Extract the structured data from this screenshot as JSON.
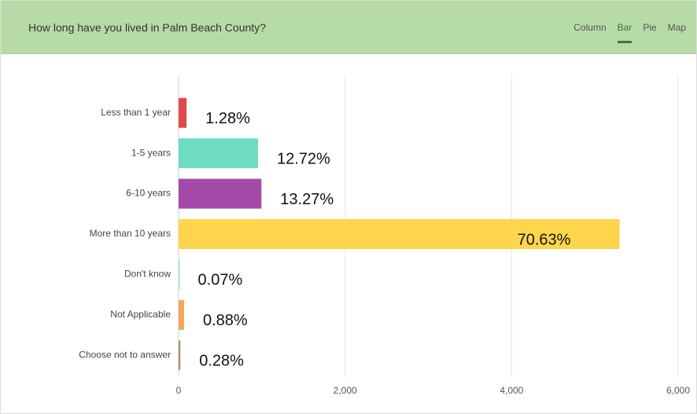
{
  "header": {
    "title": "How long have you lived in Palm Beach County?",
    "tabs": [
      "Column",
      "Bar",
      "Pie",
      "Map"
    ],
    "active_tab": 1
  },
  "chart_data": {
    "type": "bar",
    "orientation": "horizontal",
    "categories": [
      "Less than 1 year",
      "1-5 years",
      "6-10 years",
      "More than 10 years",
      "Don't know",
      "Not Applicable",
      "Choose not to answer"
    ],
    "values": [
      96,
      954,
      995,
      5297,
      5,
      66,
      21
    ],
    "value_labels": [
      "1.28%",
      "12.72%",
      "13.27%",
      "70.63%",
      "0.07%",
      "0.88%",
      "0.28%"
    ],
    "colors": [
      "#e04b47",
      "#6edcc1",
      "#a54aa8",
      "#ffd54c",
      "#a9d8ea",
      "#f5a65b",
      "#b48a6e"
    ],
    "xlim": [
      0,
      6000
    ],
    "xticks": [
      0,
      {
        "value": 2000,
        "label": "2,000"
      },
      {
        "value": 4000,
        "label": "4,000"
      },
      {
        "value": 6000,
        "label": "6,000"
      }
    ],
    "grid": true
  }
}
